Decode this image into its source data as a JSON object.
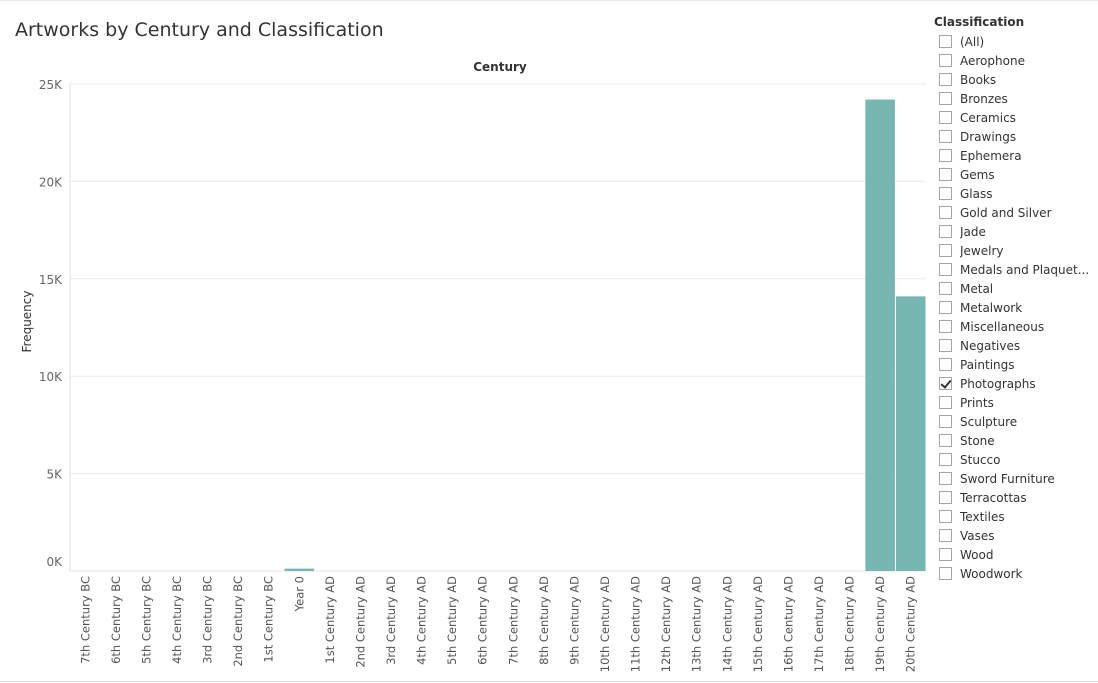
{
  "title": "Artworks by Century and Classification",
  "chart_data": {
    "type": "bar",
    "title": "Artworks by Century and Classification",
    "column_header": "Century",
    "ylabel": "Frequency",
    "xlabel": "",
    "ylim": [
      0,
      25000
    ],
    "yticks": [
      0,
      5000,
      10000,
      15000,
      20000,
      25000
    ],
    "ytick_labels": [
      "0K",
      "5K",
      "10K",
      "15K",
      "20K",
      "25K"
    ],
    "grid": true,
    "bar_color": "#76b7b2",
    "categories": [
      "7th Century BC",
      "6th Century BC",
      "5th Century BC",
      "4th Century BC",
      "3rd Century BC",
      "2nd Century BC",
      "1st Century BC",
      "Year 0",
      "1st Century AD",
      "2nd Century AD",
      "3rd Century AD",
      "4th Century AD",
      "5th Century AD",
      "6th Century AD",
      "7th Century AD",
      "8th Century AD",
      "9th Century AD",
      "10th Century AD",
      "11th Century AD",
      "12th Century AD",
      "13th Century AD",
      "14th Century AD",
      "15th Century AD",
      "16th Century AD",
      "17th Century AD",
      "18th Century AD",
      "19th Century AD",
      "20th Century AD"
    ],
    "values": [
      0,
      0,
      0,
      0,
      0,
      0,
      0,
      120,
      0,
      0,
      0,
      0,
      0,
      0,
      0,
      0,
      0,
      0,
      0,
      0,
      0,
      0,
      0,
      0,
      0,
      0,
      24200,
      14100
    ]
  },
  "filter": {
    "title": "Classification",
    "items": [
      {
        "label": "(All)",
        "checked": false
      },
      {
        "label": "Aerophone",
        "checked": false
      },
      {
        "label": "Books",
        "checked": false
      },
      {
        "label": "Bronzes",
        "checked": false
      },
      {
        "label": "Ceramics",
        "checked": false
      },
      {
        "label": "Drawings",
        "checked": false
      },
      {
        "label": "Ephemera",
        "checked": false
      },
      {
        "label": "Gems",
        "checked": false
      },
      {
        "label": "Glass",
        "checked": false
      },
      {
        "label": "Gold and Silver",
        "checked": false
      },
      {
        "label": "Jade",
        "checked": false
      },
      {
        "label": "Jewelry",
        "checked": false
      },
      {
        "label": "Medals and Plaquet...",
        "checked": false
      },
      {
        "label": "Metal",
        "checked": false
      },
      {
        "label": "Metalwork",
        "checked": false
      },
      {
        "label": "Miscellaneous",
        "checked": false
      },
      {
        "label": "Negatives",
        "checked": false
      },
      {
        "label": "Paintings",
        "checked": false
      },
      {
        "label": "Photographs",
        "checked": true
      },
      {
        "label": "Prints",
        "checked": false
      },
      {
        "label": "Sculpture",
        "checked": false
      },
      {
        "label": "Stone",
        "checked": false
      },
      {
        "label": "Stucco",
        "checked": false
      },
      {
        "label": "Sword Furniture",
        "checked": false
      },
      {
        "label": "Terracottas",
        "checked": false
      },
      {
        "label": "Textiles",
        "checked": false
      },
      {
        "label": "Vases",
        "checked": false
      },
      {
        "label": "Wood",
        "checked": false
      },
      {
        "label": "Woodwork",
        "checked": false
      }
    ]
  }
}
